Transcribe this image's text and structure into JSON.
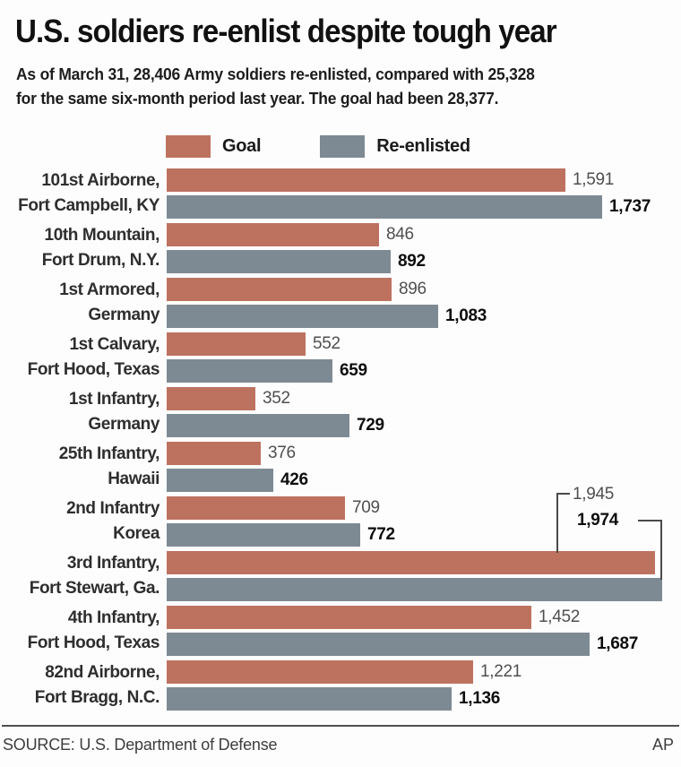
{
  "chart_data": {
    "type": "bar",
    "orientation": "horizontal",
    "title": "U.S. soldiers re-enlist despite tough year",
    "subtitle_lines": [
      "As of March 31, 28,406 Army soldiers re-enlisted, compared with 25,328",
      "for the same six-month period last year. The goal had been 28,377."
    ],
    "legend_position": "top",
    "grid": false,
    "xlim": [
      0,
      2050
    ],
    "categories": [
      [
        "101st Airborne,",
        "Fort Campbell, KY"
      ],
      [
        "10th Mountain,",
        "Fort Drum, N.Y."
      ],
      [
        "1st Armored,",
        "Germany"
      ],
      [
        "1st Calvary,",
        "Fort Hood, Texas"
      ],
      [
        "1st Infantry,",
        "Germany"
      ],
      [
        "25th Infantry,",
        "Hawaii"
      ],
      [
        "2nd Infantry",
        "Korea"
      ],
      [
        "3rd Infantry,",
        "Fort Stewart, Ga."
      ],
      [
        "4th Infantry,",
        "Fort Hood, Texas"
      ],
      [
        "82nd Airborne,",
        "Fort Bragg, N.C."
      ]
    ],
    "series": [
      {
        "name": "Goal",
        "color": "#bd7260",
        "values": [
          1591,
          846,
          896,
          552,
          352,
          376,
          709,
          1945,
          1452,
          1221
        ],
        "labels": [
          "1,591",
          "846",
          "896",
          "552",
          "352",
          "376",
          "709",
          "1,945",
          "1,452",
          "1,221"
        ]
      },
      {
        "name": "Re-enlisted",
        "color": "#7e8a93",
        "values": [
          1737,
          892,
          1083,
          659,
          729,
          426,
          772,
          1974,
          1687,
          1136
        ],
        "labels": [
          "1,737",
          "892",
          "1,083",
          "659",
          "729",
          "426",
          "772",
          "1,974",
          "1,687",
          "1,136"
        ]
      }
    ],
    "callout_row": 7
  },
  "footer": {
    "source": "SOURCE: U.S. Department of Defense",
    "credit": "AP"
  }
}
